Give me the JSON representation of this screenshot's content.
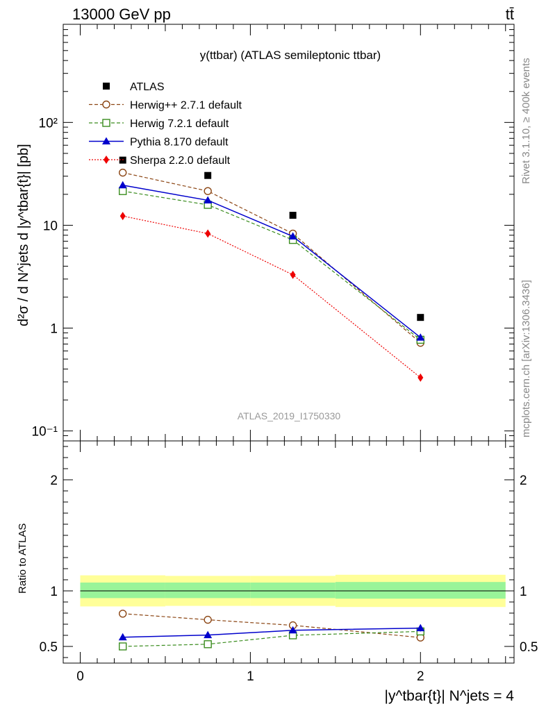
{
  "header": {
    "left": "13000 GeV pp",
    "right": "tt̄"
  },
  "side": {
    "rivet": "Rivet 3.1.10, ≥ 400k events",
    "mcplots": "mcplots.cern.ch [arXiv:1306.3436]"
  },
  "chart_data": [
    {
      "type": "line",
      "title": "y(ttbar) (ATLAS semileptonic ttbar)",
      "analysis_label": "ATLAS_2019_I1750330",
      "ylabel": "d²σ / d N^jets d |y^tbar{t}| [pb]",
      "yscale": "log",
      "xlim": [
        -0.1,
        2.55
      ],
      "ylim": [
        0.08,
        900
      ],
      "y_tick_labels": [
        "10⁻¹",
        "1",
        "10",
        "10²"
      ],
      "x": [
        0.25,
        0.75,
        1.25,
        2.0
      ],
      "series": [
        {
          "name": "ATLAS",
          "values": [
            43,
            30.5,
            12.5,
            1.27
          ],
          "color": "#000000",
          "marker": "square-filled",
          "line": "none"
        },
        {
          "name": "Herwig++ 2.7.1 default",
          "values": [
            32.5,
            21.5,
            8.3,
            0.72
          ],
          "color": "#8b4513",
          "marker": "circle-open",
          "line": "dashed"
        },
        {
          "name": "Herwig 7.2.1 default",
          "values": [
            21.5,
            15.8,
            7.2,
            0.77
          ],
          "color": "#3a8c1e",
          "marker": "square-open",
          "line": "dashed"
        },
        {
          "name": "Pythia 8.170 default",
          "values": [
            24.5,
            17.5,
            7.8,
            0.81
          ],
          "color": "#0000cc",
          "marker": "triangle-filled",
          "line": "solid"
        },
        {
          "name": "Sherpa 2.2.0 default",
          "values": [
            12.3,
            8.3,
            3.3,
            0.33
          ],
          "color": "#ee0000",
          "marker": "diamond-filled",
          "line": "dotted"
        }
      ],
      "legend_placement": "top-left"
    },
    {
      "type": "line",
      "ylabel": "Ratio to ATLAS",
      "xlabel": "|y^tbar{t}| N^jets = 4",
      "xlim": [
        -0.1,
        2.55
      ],
      "ylim": [
        0.35,
        2.35
      ],
      "x_ticks": [
        0,
        1,
        2
      ],
      "y_ticks": [
        0.5,
        1,
        2
      ],
      "x": [
        0.25,
        0.75,
        1.25,
        2.0
      ],
      "bands": {
        "edges": [
          0,
          0.5,
          1.0,
          1.5,
          2.5
        ],
        "stat_lo": [
          0.935,
          0.935,
          0.935,
          0.93
        ],
        "stat_hi": [
          1.075,
          1.075,
          1.075,
          1.08
        ],
        "total_lo": [
          0.86,
          0.865,
          0.865,
          0.855
        ],
        "total_hi": [
          1.14,
          1.135,
          1.135,
          1.145
        ],
        "stat_color": "#99f499",
        "total_color": "#ffff99"
      },
      "series": [
        {
          "name": "Herwig++ 2.7.1 default",
          "values": [
            0.795,
            0.74,
            0.69,
            0.58
          ],
          "color": "#8b4513",
          "marker": "circle-open",
          "line": "dashed"
        },
        {
          "name": "Herwig 7.2.1 default",
          "values": [
            0.5,
            0.52,
            0.6,
            0.635
          ],
          "color": "#3a8c1e",
          "marker": "square-open",
          "line": "dashed"
        },
        {
          "name": "Pythia 8.170 default",
          "values": [
            0.583,
            0.602,
            0.645,
            0.665
          ],
          "color": "#0000cc",
          "marker": "triangle-filled",
          "line": "solid",
          "err_last": 0.03
        }
      ]
    }
  ]
}
